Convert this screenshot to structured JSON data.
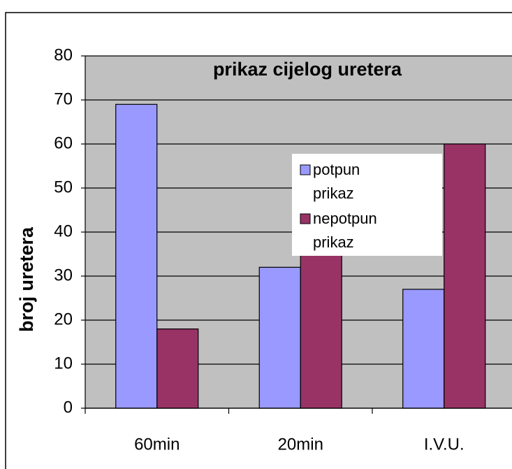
{
  "chart_data": {
    "type": "bar",
    "title": "prikaz cijelog uretera",
    "y_label": "broj uretera",
    "categories": [
      "60min",
      "20min",
      "I.V.U."
    ],
    "series": [
      {
        "name": "potpun prikaz",
        "color": "#9999ff",
        "values": [
          69,
          32,
          27
        ]
      },
      {
        "name": "nepotpun prikaz",
        "color": "#993366",
        "values": [
          18,
          37,
          60
        ]
      }
    ],
    "ylim": [
      0,
      80
    ],
    "yticks": [
      0,
      10,
      20,
      30,
      40,
      50,
      60,
      70,
      80
    ],
    "grid": true,
    "plot_background": "#c0c0c0",
    "legend": "center-right"
  }
}
